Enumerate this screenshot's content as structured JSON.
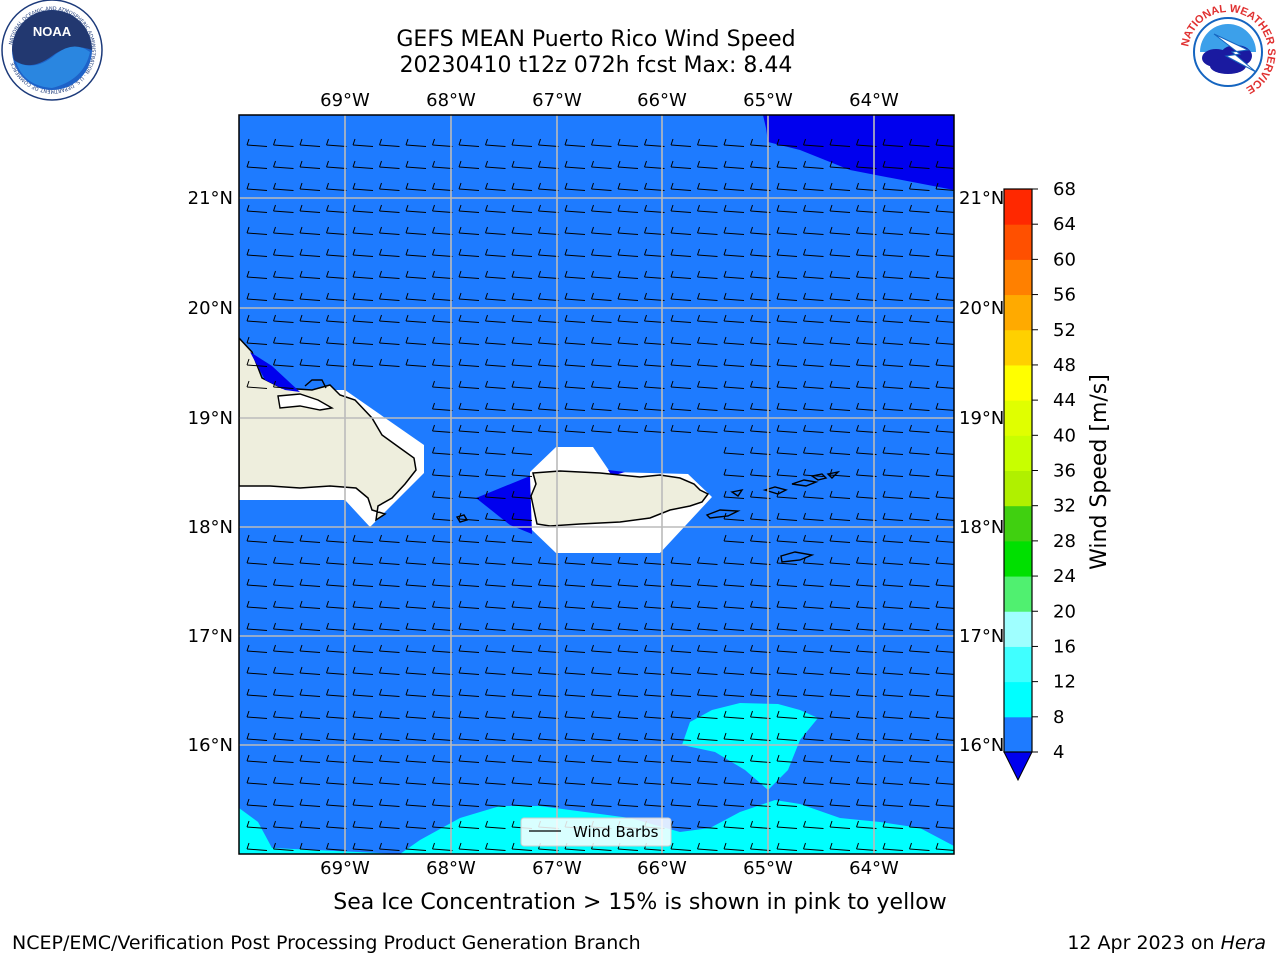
{
  "header": {
    "title_line1": "GEFS MEAN Puerto Rico Wind Speed",
    "title_line2": "20230410 t12z 072h fcst   Max: 8.44"
  },
  "logos": {
    "left": "NOAA",
    "left_ring_text": "NATIONAL OCEANIC AND ATMOSPHERIC ADMINISTRATION · U.S. DEPARTMENT OF COMMERCE",
    "right_ring_text": "NATIONAL WEATHER SERVICE"
  },
  "map": {
    "lon_labels": [
      "69°W",
      "68°W",
      "67°W",
      "66°W",
      "65°W",
      "64°W"
    ],
    "lat_labels": [
      "21°N",
      "20°N",
      "19°N",
      "18°N",
      "17°N",
      "16°N"
    ],
    "legend_label": "Wind Barbs",
    "ocean_color": "#1E7BFF",
    "land_color": "#EEEEDD",
    "dark_color": "#0000EE",
    "cyan_color": "#00FFFF"
  },
  "colorbar": {
    "label": "Wind Speed [m/s]",
    "ticks": [
      "4",
      "8",
      "12",
      "16",
      "20",
      "24",
      "28",
      "32",
      "36",
      "40",
      "44",
      "48",
      "52",
      "56",
      "60",
      "64",
      "68"
    ],
    "colors": [
      "#1E7BFF",
      "#00FFFF",
      "#40FFFF",
      "#9FFFFF",
      "#50F070",
      "#00E000",
      "#40D010",
      "#B0F000",
      "#C8FF00",
      "#E0FF00",
      "#FFFF00",
      "#FFD000",
      "#FFAA00",
      "#FF8000",
      "#FF5000",
      "#FF2800",
      "#FF0000"
    ],
    "under_color": "#0000EE"
  },
  "footer": {
    "caption": "Sea Ice Concentration > 15% is shown in pink to yellow",
    "left": "NCEP/EMC/Verification Post Processing Product Generation Branch",
    "right_prefix": "12 Apr 2023 on",
    "right_host": "Hera"
  }
}
